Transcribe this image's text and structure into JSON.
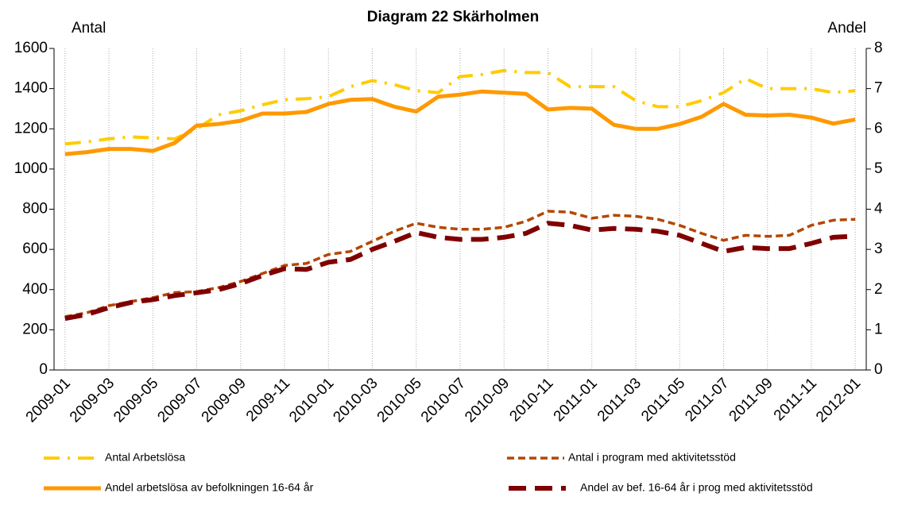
{
  "chart_data": {
    "type": "line",
    "title": "Diagram 22 Skärholmen",
    "y_label": "Antal",
    "y2_label": "Andel",
    "categories": [
      "2009-01",
      null,
      "2009-03",
      null,
      "2009-05",
      null,
      "2009-07",
      null,
      "2009-09",
      null,
      "2009-11",
      null,
      "2010-01",
      null,
      "2010-03",
      null,
      "2010-05",
      null,
      "2010-07",
      null,
      "2010-09",
      null,
      "2010-11",
      null,
      "2011-01",
      null,
      "2011-03",
      null,
      "2011-05",
      null,
      "2011-07",
      null,
      "2011-09",
      null,
      "2011-11",
      null,
      "2012-01"
    ],
    "ylim": [
      0,
      1600
    ],
    "yticks": [
      0,
      200,
      400,
      600,
      800,
      1000,
      1200,
      1400,
      1600
    ],
    "y2lim": [
      0,
      8
    ],
    "y2ticks": [
      0,
      1,
      2,
      3,
      4,
      5,
      6,
      7,
      8
    ],
    "grid": "x",
    "series": [
      {
        "name": "Antal Arbetslösa",
        "color": "#ffcc00",
        "line_style": "dash-dot",
        "axis": "y",
        "values": [
          1125,
          1135,
          1150,
          1160,
          1155,
          1150,
          1200,
          1270,
          1290,
          1320,
          1345,
          1350,
          1360,
          1410,
          1440,
          1420,
          1390,
          1380,
          1460,
          1470,
          1490,
          1480,
          1480,
          1410,
          1410,
          1410,
          1340,
          1310,
          1310,
          1340,
          1380,
          1450,
          1400,
          1400,
          1400,
          1380,
          1390
        ]
      },
      {
        "name": "Antal i program med aktivitetsstöd",
        "color": "#b34700",
        "line_style": "dash",
        "axis": "y",
        "values": [
          265,
          285,
          320,
          340,
          360,
          385,
          390,
          410,
          440,
          480,
          520,
          530,
          575,
          590,
          640,
          690,
          730,
          710,
          700,
          700,
          710,
          740,
          790,
          785,
          755,
          770,
          765,
          750,
          720,
          680,
          645,
          670,
          665,
          670,
          720,
          745,
          750
        ]
      },
      {
        "name": "Andel arbetslösa av befolkningen 16-64 år",
        "color": "#ff9900",
        "line_style": "solid",
        "axis": "y2",
        "values": [
          5.37,
          5.42,
          5.5,
          5.5,
          5.45,
          5.65,
          6.08,
          6.12,
          6.2,
          6.38,
          6.38,
          6.42,
          6.62,
          6.72,
          6.74,
          6.55,
          6.43,
          6.8,
          6.85,
          6.93,
          6.9,
          6.87,
          6.48,
          6.52,
          6.5,
          6.1,
          6.0,
          6.0,
          6.12,
          6.3,
          6.62,
          6.35,
          6.33,
          6.35,
          6.28,
          6.13,
          6.23
        ]
      },
      {
        "name": "Andel av bef. 16-64 år i prog med aktivitetsstöd",
        "color": "#7f0000",
        "line_style": "long-dash",
        "axis": "y2",
        "values": [
          1.28,
          1.38,
          1.55,
          1.68,
          1.75,
          1.85,
          1.92,
          2.0,
          2.15,
          2.35,
          2.52,
          2.5,
          2.68,
          2.75,
          3.0,
          3.2,
          3.42,
          3.3,
          3.25,
          3.25,
          3.3,
          3.4,
          3.65,
          3.6,
          3.48,
          3.52,
          3.5,
          3.45,
          3.35,
          3.15,
          2.95,
          3.05,
          3.02,
          3.02,
          3.15,
          3.3,
          3.33
        ]
      }
    ]
  }
}
